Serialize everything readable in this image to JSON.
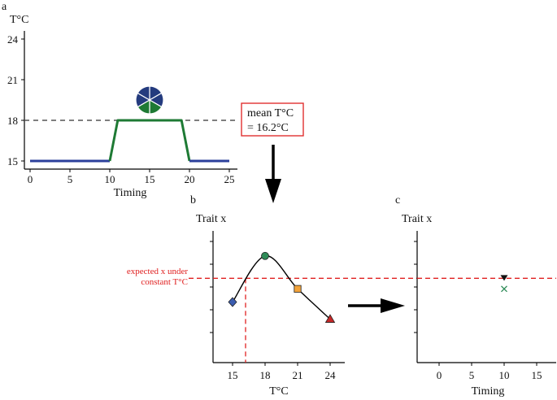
{
  "panels": {
    "a": {
      "panel_label": "a",
      "y_title": "T°C",
      "x_title": "Timing",
      "y_ticks": [
        "24",
        "21",
        "18",
        "15"
      ],
      "x_ticks": [
        "0",
        "5",
        "10",
        "15",
        "20",
        "25"
      ]
    },
    "b": {
      "panel_label": "b",
      "y_title": "Trait x",
      "x_title": "T°C",
      "x_ticks": [
        "15",
        "18",
        "21",
        "24"
      ],
      "annotation_line1": "expected x under",
      "annotation_line2": "constant T°C"
    },
    "c": {
      "panel_label": "c",
      "y_title": "Trait x",
      "x_title": "Timing",
      "x_ticks": [
        "0",
        "5",
        "10",
        "15"
      ]
    }
  },
  "mean_box": {
    "line1": "mean T°C",
    "line2": "= 16.2°C"
  },
  "colors": {
    "baseline_blue": "#2b3f9b",
    "warm_green": "#1e7a34",
    "dashed_gray": "#555555",
    "reference_red": "#e02020",
    "pie_navy": "#243b7e",
    "marker_blue": "#3b5db0",
    "marker_green": "#2e8b57",
    "marker_orange": "#f2a33a",
    "marker_red": "#c62828"
  },
  "chart_data": [
    {
      "type": "line",
      "panel": "a",
      "xlabel": "Timing",
      "ylabel": "T°C",
      "xlim": [
        0,
        25
      ],
      "ylim": [
        15,
        24
      ],
      "series": [
        {
          "x": [
            0,
            10
          ],
          "y": [
            15,
            15
          ],
          "color": "#2b3f9b"
        },
        {
          "x": [
            10,
            11,
            19,
            20
          ],
          "y": [
            15,
            18,
            18,
            15
          ],
          "color": "#1e7a34"
        },
        {
          "x": [
            20,
            25
          ],
          "y": [
            15,
            15
          ],
          "color": "#2b3f9b"
        }
      ],
      "reference_line": {
        "y": 18,
        "style": "dashed"
      },
      "pie": {
        "x": 15,
        "y": 19.5,
        "segments": 6,
        "navy_segments": 4,
        "green_segments": 2
      }
    },
    {
      "type": "line",
      "panel": "b",
      "xlabel": "T°C",
      "ylabel": "Trait x",
      "xlim": [
        13.5,
        25.5
      ],
      "ylim": [
        0,
        10
      ],
      "curve": {
        "x": [
          15,
          18,
          21,
          24
        ],
        "y": [
          4.6,
          8.1,
          5.6,
          3.3
        ]
      },
      "points": [
        {
          "x": 15,
          "y": 4.6,
          "shape": "diamond",
          "color": "#3b5db0"
        },
        {
          "x": 18,
          "y": 8.1,
          "shape": "circle",
          "color": "#2e8b57"
        },
        {
          "x": 21,
          "y": 5.6,
          "shape": "square",
          "color": "#f2a33a"
        },
        {
          "x": 24,
          "y": 3.3,
          "shape": "triangle",
          "color": "#c62828"
        }
      ],
      "reference": {
        "x": 16.2,
        "y": 6.4
      }
    },
    {
      "type": "scatter",
      "panel": "c",
      "xlabel": "Timing",
      "ylabel": "Trait x",
      "xlim": [
        -3.5,
        18.5
      ],
      "ylim": [
        0,
        10
      ],
      "points": [
        {
          "x": 10,
          "y": 6.4,
          "shape": "triangle-down",
          "color": "#111111"
        },
        {
          "x": 10,
          "y": 5.6,
          "shape": "x",
          "color": "#2e8b57"
        }
      ],
      "reference": {
        "y": 6.4
      }
    }
  ]
}
